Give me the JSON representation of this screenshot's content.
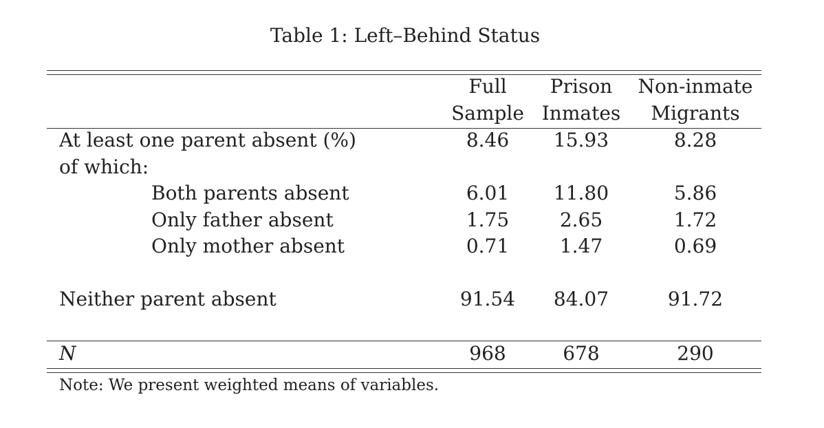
{
  "caption": "Table 1: Left–Behind Status",
  "columns": [
    {
      "line1": "Full",
      "line2": "Sample"
    },
    {
      "line1": "Prison",
      "line2": "Inmates"
    },
    {
      "line1": "Non-inmate",
      "line2": "Migrants"
    }
  ],
  "rows": [
    {
      "label": "At least one parent absent (%)",
      "values": [
        "8.46",
        "15.93",
        "8.28"
      ]
    },
    {
      "label": "of which:",
      "values": [
        "",
        "",
        ""
      ]
    },
    {
      "label": "Both parents absent",
      "values": [
        "6.01",
        "11.80",
        "5.86"
      ]
    },
    {
      "label": "Only father absent",
      "values": [
        "1.75",
        "2.65",
        "1.72"
      ]
    },
    {
      "label": "Only mother absent",
      "values": [
        "0.71",
        "1.47",
        "0.69"
      ]
    },
    {
      "label": "Neither parent absent",
      "values": [
        "91.54",
        "84.07",
        "91.72"
      ]
    }
  ],
  "n_row": {
    "label": "N",
    "values": [
      "968",
      "678",
      "290"
    ]
  },
  "note": "Note: We present weighted means of variables."
}
